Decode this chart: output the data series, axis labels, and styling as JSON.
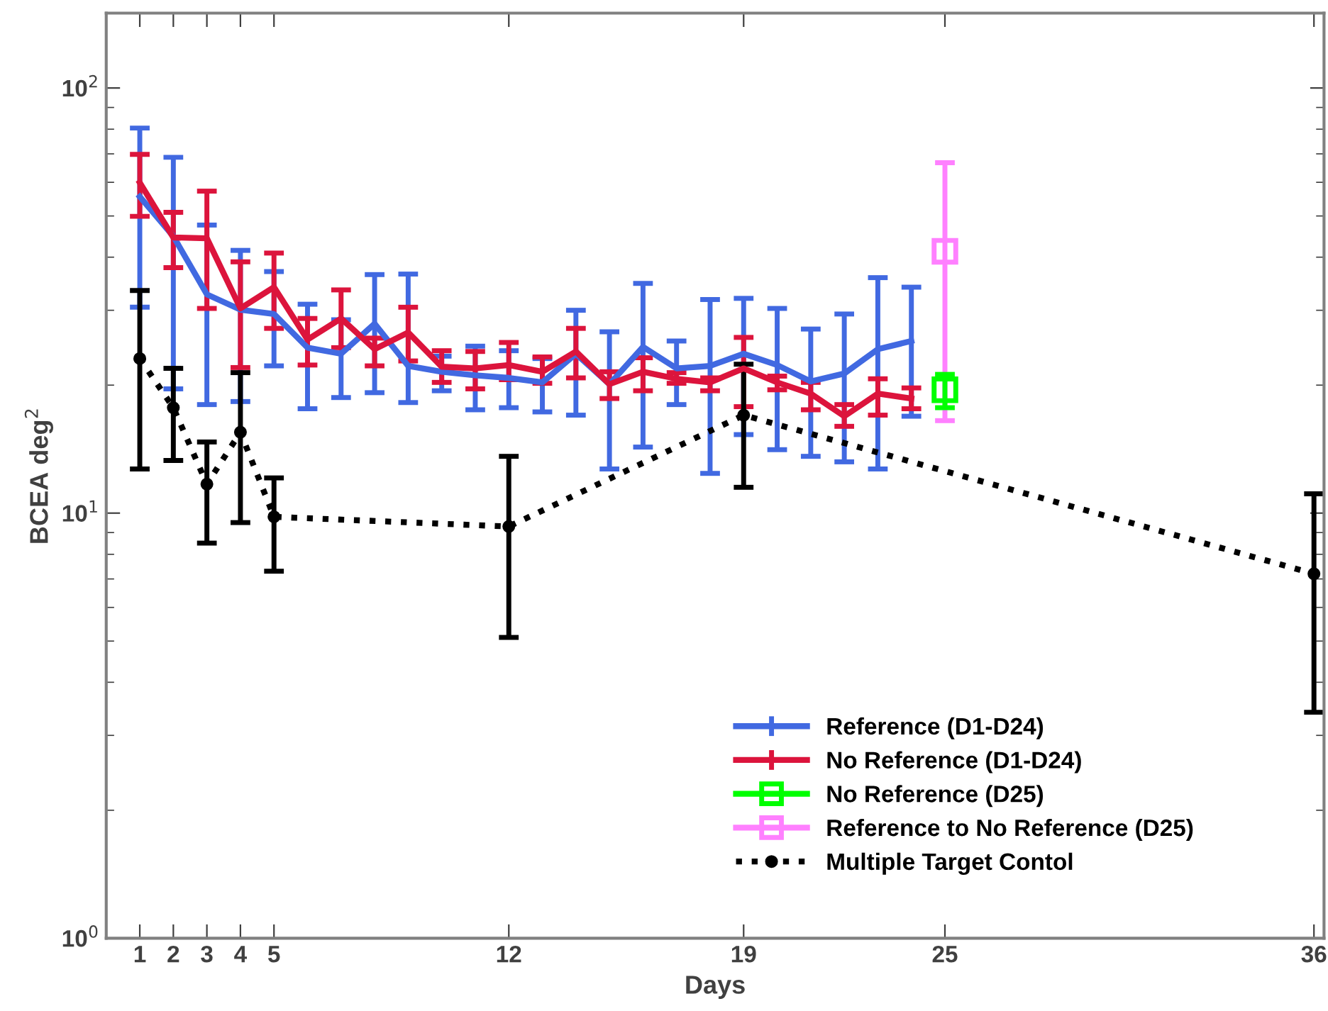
{
  "chart_data": {
    "type": "line",
    "xlabel": "Days",
    "ylabel": "BCEA deg$^{2}$",
    "log": "y",
    "xlim": [
      0,
      36.3
    ],
    "ylim": [
      1,
      150
    ],
    "xticks": [
      1,
      2,
      3,
      4,
      5,
      12,
      19,
      25,
      36
    ],
    "yticks": [
      {
        "value": 1,
        "label": "10$^{0}$"
      },
      {
        "value": 10,
        "label": "10$^{1}$"
      },
      {
        "value": 100,
        "label": "10$^{2}$"
      }
    ],
    "grid": false,
    "legend": "bottom right",
    "line_style": "solid",
    "marker": "none",
    "series": [
      {
        "name": "Reference (D1-D24)",
        "color": "#4169e1",
        "x": [
          1,
          2,
          3,
          4,
          5,
          6,
          7,
          8,
          9,
          10,
          11,
          12,
          13,
          14,
          15,
          16,
          17,
          18,
          19,
          20,
          21,
          22,
          23,
          24
        ],
        "values": [
          55.5,
          44.8,
          32.7,
          30.1,
          29.4,
          24.5,
          23.7,
          27.9,
          22.2,
          21.5,
          21.1,
          20.8,
          20.3,
          23.7,
          20.1,
          24.6,
          21.9,
          22.2,
          23.7,
          22.3,
          20.4,
          21.3,
          24.3,
          25.4
        ],
        "errors": [
          [
            30.5,
            80.5
          ],
          [
            19.6,
            68.7
          ],
          [
            18,
            47.6
          ],
          [
            18.3,
            41.5
          ],
          [
            22.2,
            37
          ],
          [
            17.6,
            31
          ],
          [
            18.7,
            28.5
          ],
          [
            19.2,
            36.4
          ],
          [
            18.2,
            36.5
          ],
          [
            19.4,
            23.4
          ],
          [
            17.5,
            24.7
          ],
          [
            17.7,
            24.1
          ],
          [
            17.3,
            23.1
          ],
          [
            17,
            30
          ],
          [
            12.7,
            26.7
          ],
          [
            14.3,
            34.7
          ],
          [
            18,
            25.4
          ],
          [
            12.4,
            31.8
          ],
          [
            15.3,
            32
          ],
          [
            14.1,
            30.3
          ],
          [
            13.6,
            27.1
          ],
          [
            13.2,
            29.4
          ],
          [
            12.7,
            35.8
          ],
          [
            16.9,
            34
          ]
        ]
      },
      {
        "name": "No Reference (D1-D24)",
        "color": "#dc143c",
        "x": [
          1,
          2,
          3,
          4,
          5,
          6,
          7,
          8,
          9,
          10,
          11,
          12,
          13,
          14,
          15,
          16,
          17,
          18,
          19,
          20,
          21,
          22,
          23,
          24
        ],
        "values": [
          59.9,
          44.5,
          44.3,
          30.3,
          34,
          25.6,
          28.7,
          24.3,
          26.6,
          22.1,
          21.9,
          22.3,
          21.5,
          24,
          20.1,
          21.5,
          20.7,
          20.3,
          21.9,
          20.3,
          19.1,
          16.9,
          19.1,
          18.6
        ],
        "errors": [
          [
            49.9,
            69.8
          ],
          [
            37.8,
            51
          ],
          [
            30.3,
            57.2
          ],
          [
            22,
            39
          ],
          [
            27.2,
            40.9
          ],
          [
            22.3,
            28.7
          ],
          [
            24.5,
            33.5
          ],
          [
            22.2,
            25.8
          ],
          [
            22.8,
            30.5
          ],
          [
            20.3,
            24.1
          ],
          [
            19.6,
            24
          ],
          [
            20.6,
            25.2
          ],
          [
            20.2,
            23.3
          ],
          [
            20.8,
            27.2
          ],
          [
            18.6,
            21.5
          ],
          [
            19.4,
            23.2
          ],
          [
            20.2,
            21.4
          ],
          [
            19.4,
            20.8
          ],
          [
            17.8,
            25.9
          ],
          [
            19.5,
            21
          ],
          [
            17.5,
            20.3
          ],
          [
            16,
            18
          ],
          [
            17,
            20.7
          ],
          [
            17.6,
            19.7
          ]
        ]
      },
      {
        "name": "No Reference (D25)",
        "color": "#00ff00",
        "marker": "square",
        "x": [
          25
        ],
        "values": [
          19.5
        ],
        "errors": [
          [
            17.7,
            21.2
          ]
        ]
      },
      {
        "name": "Reference to No Reference (D25)",
        "color": "#ff80ff",
        "marker": "square",
        "x": [
          25
        ],
        "values": [
          41.3
        ],
        "errors": [
          [
            16.5,
            66.7
          ]
        ]
      },
      {
        "name": "Multiple Target Contol",
        "color": "#000000",
        "line_style": "dotted",
        "marker": "circle",
        "x": [
          1,
          2,
          3,
          4,
          5,
          12,
          19,
          36
        ],
        "values": [
          23.1,
          17.7,
          11.7,
          15.5,
          9.8,
          9.3,
          17,
          7.2
        ],
        "errors": [
          [
            12.7,
            33.4
          ],
          [
            13.3,
            21.9
          ],
          [
            8.5,
            14.7
          ],
          [
            9.5,
            21.4
          ],
          [
            7.3,
            12.1
          ],
          [
            5.1,
            13.6
          ],
          [
            11.5,
            22.4
          ],
          [
            3.4,
            11.1
          ]
        ]
      }
    ]
  }
}
